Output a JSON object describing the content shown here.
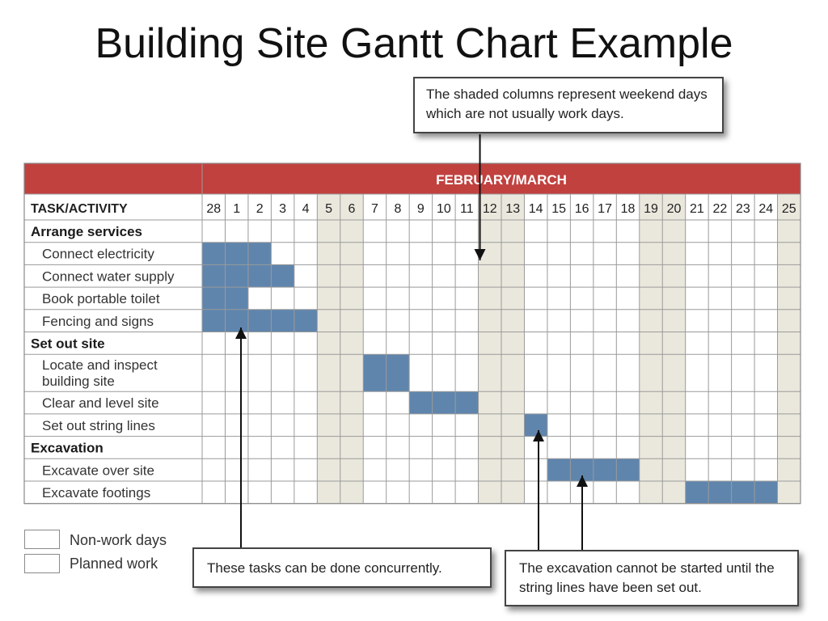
{
  "title": "Building Site Gantt Chart Example",
  "callouts": {
    "weekend": "The shaded columns represent weekend days which are not usually work days.",
    "concurrent": "These tasks can be done concurrently.",
    "excavation": "The excavation cannot be started until the string lines have been set out."
  },
  "legend": {
    "non_work": "Non-work days",
    "planned": "Planned work"
  },
  "colors": {
    "header_red": "#c1413f",
    "planned_blue": "#5f85ad",
    "nonwork_beige": "#eae8dd",
    "grid": "#9a9a9a"
  },
  "chart_data": {
    "type": "table",
    "header": "FEBRUARY/MARCH",
    "task_column_label": "TASK/ACTIVITY",
    "days": [
      "28",
      "1",
      "2",
      "3",
      "4",
      "5",
      "6",
      "7",
      "8",
      "9",
      "10",
      "11",
      "12",
      "13",
      "14",
      "15",
      "16",
      "17",
      "18",
      "19",
      "20",
      "21",
      "22",
      "23",
      "24",
      "25"
    ],
    "non_work_days": [
      "5",
      "6",
      "12",
      "13",
      "19",
      "20",
      "25"
    ],
    "rows": [
      {
        "label": "Arrange services",
        "group": true,
        "planned": []
      },
      {
        "label": "Connect electricity",
        "group": false,
        "planned": [
          "28",
          "1",
          "2"
        ]
      },
      {
        "label": "Connect water supply",
        "group": false,
        "planned": [
          "28",
          "1",
          "2",
          "3"
        ]
      },
      {
        "label": "Book portable toilet",
        "group": false,
        "planned": [
          "28",
          "1"
        ]
      },
      {
        "label": "Fencing and signs",
        "group": false,
        "planned": [
          "28",
          "1",
          "2",
          "3",
          "4"
        ]
      },
      {
        "label": "Set out site",
        "group": true,
        "planned": []
      },
      {
        "label": "Locate and inspect building site",
        "group": false,
        "tall": true,
        "planned": [
          "7",
          "8"
        ]
      },
      {
        "label": "Clear and level site",
        "group": false,
        "planned": [
          "9",
          "10",
          "11"
        ]
      },
      {
        "label": "Set out string lines",
        "group": false,
        "planned": [
          "14"
        ]
      },
      {
        "label": "Excavation",
        "group": true,
        "planned": []
      },
      {
        "label": "Excavate over site",
        "group": false,
        "planned": [
          "15",
          "16",
          "17",
          "18"
        ]
      },
      {
        "label": "Excavate footings",
        "group": false,
        "planned": [
          "21",
          "22",
          "23",
          "24"
        ]
      }
    ]
  }
}
